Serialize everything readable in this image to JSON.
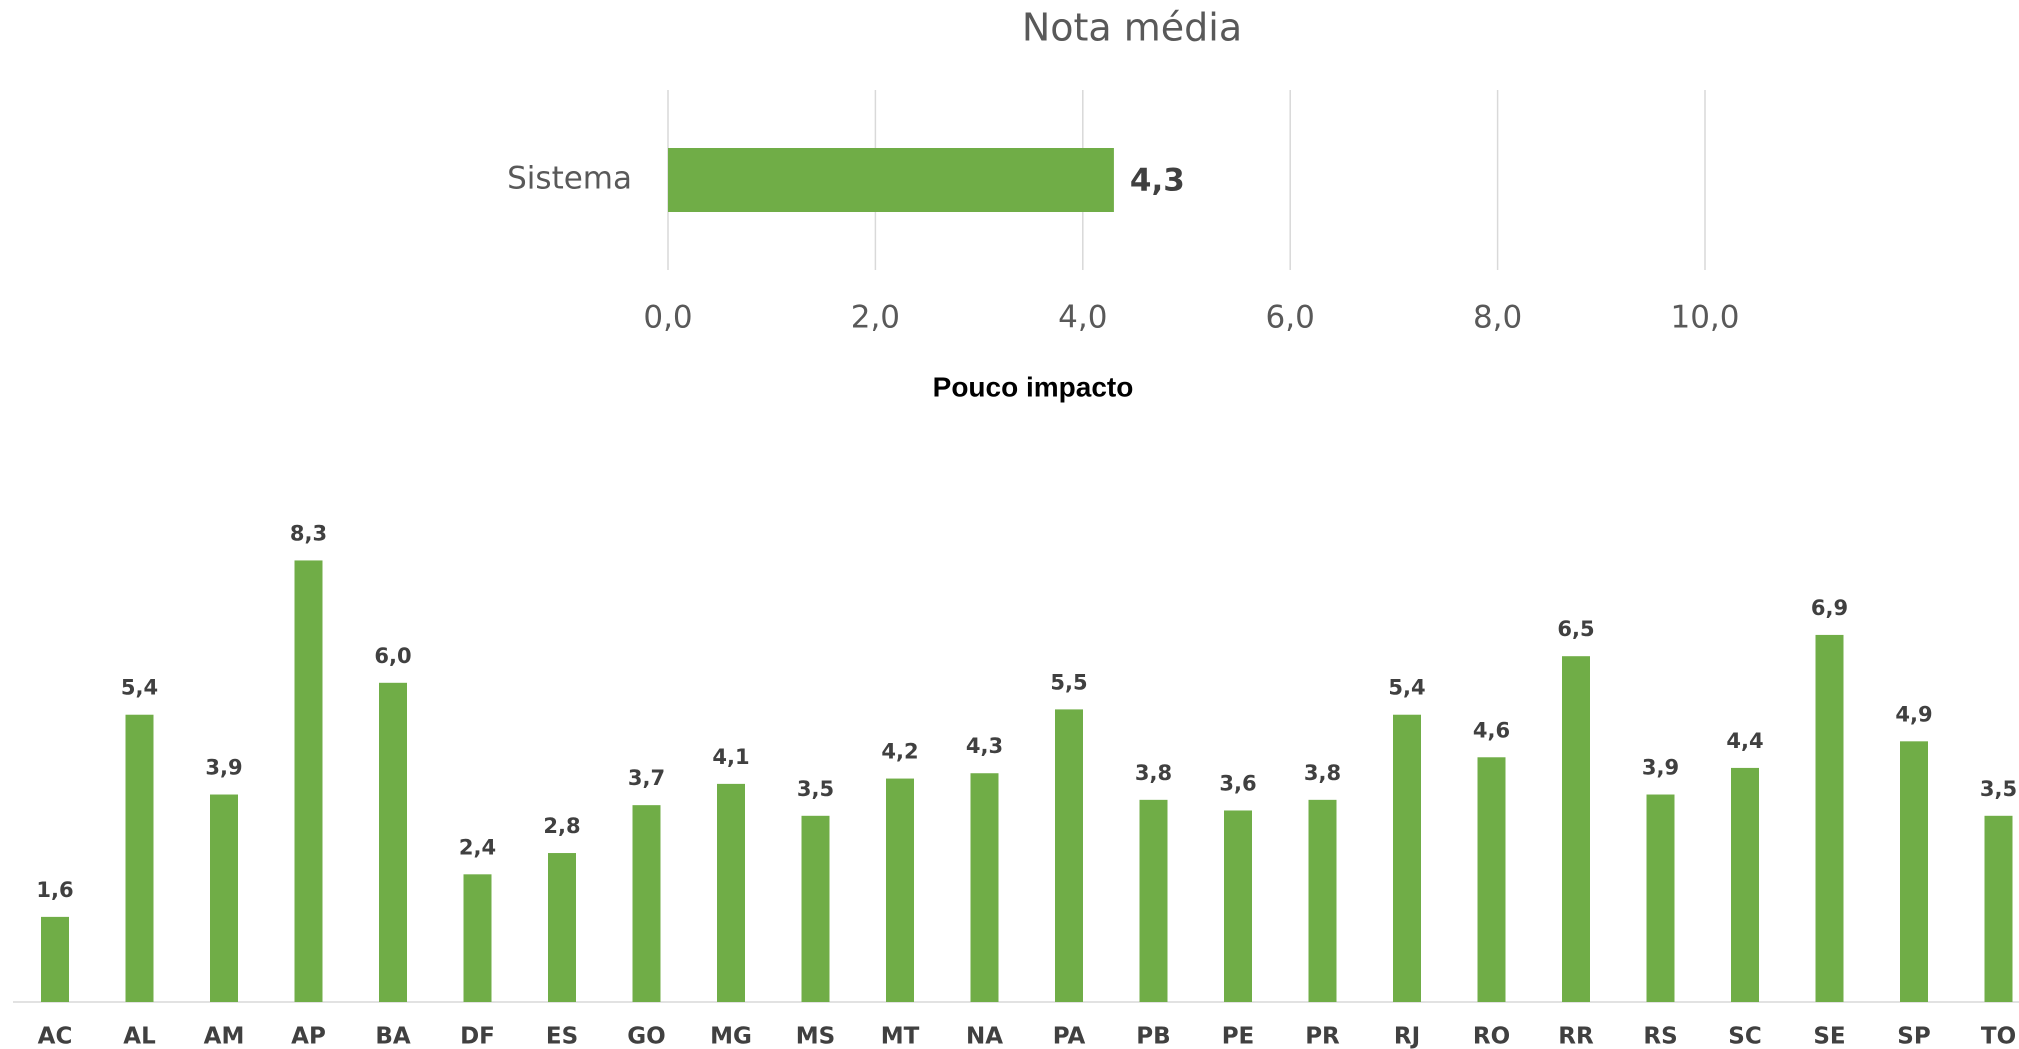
{
  "chart_data": [
    {
      "type": "bar",
      "orientation": "horizontal",
      "title": "Nota média",
      "categories": [
        "Sistema"
      ],
      "values": [
        4.3
      ],
      "value_labels": [
        "4,3"
      ],
      "color": "#70ad47",
      "xlim": [
        0,
        10
      ],
      "xticks": [
        {
          "value": 0,
          "label": "0,0"
        },
        {
          "value": 2,
          "label": "2,0"
        },
        {
          "value": 4,
          "label": "4,0"
        },
        {
          "value": 6,
          "label": "6,0"
        },
        {
          "value": 8,
          "label": "8,0"
        },
        {
          "value": 10,
          "label": "10,0"
        }
      ],
      "grid": true
    },
    {
      "type": "bar",
      "orientation": "vertical",
      "title": "Pouco impacto",
      "categories": [
        "AC",
        "AL",
        "AM",
        "AP",
        "BA",
        "DF",
        "ES",
        "GO",
        "MG",
        "MS",
        "MT",
        "NA",
        "PA",
        "PB",
        "PE",
        "PR",
        "RJ",
        "RO",
        "RR",
        "RS",
        "SC",
        "SE",
        "SP",
        "TO"
      ],
      "values": [
        1.6,
        5.4,
        3.9,
        8.3,
        6.0,
        2.4,
        2.8,
        3.7,
        4.1,
        3.5,
        4.2,
        4.3,
        5.5,
        3.8,
        3.6,
        3.8,
        5.4,
        4.6,
        6.5,
        3.9,
        4.4,
        6.9,
        4.9,
        3.5
      ],
      "value_labels": [
        "1,6",
        "5,4",
        "3,9",
        "8,3",
        "6,0",
        "2,4",
        "2,8",
        "3,7",
        "4,1",
        "3,5",
        "4,2",
        "4,3",
        "5,5",
        "3,8",
        "3,6",
        "3,8",
        "5,4",
        "4,6",
        "6,5",
        "3,9",
        "4,4",
        "6,9",
        "4,9",
        "3,5"
      ],
      "color": "#70ad47"
    }
  ]
}
